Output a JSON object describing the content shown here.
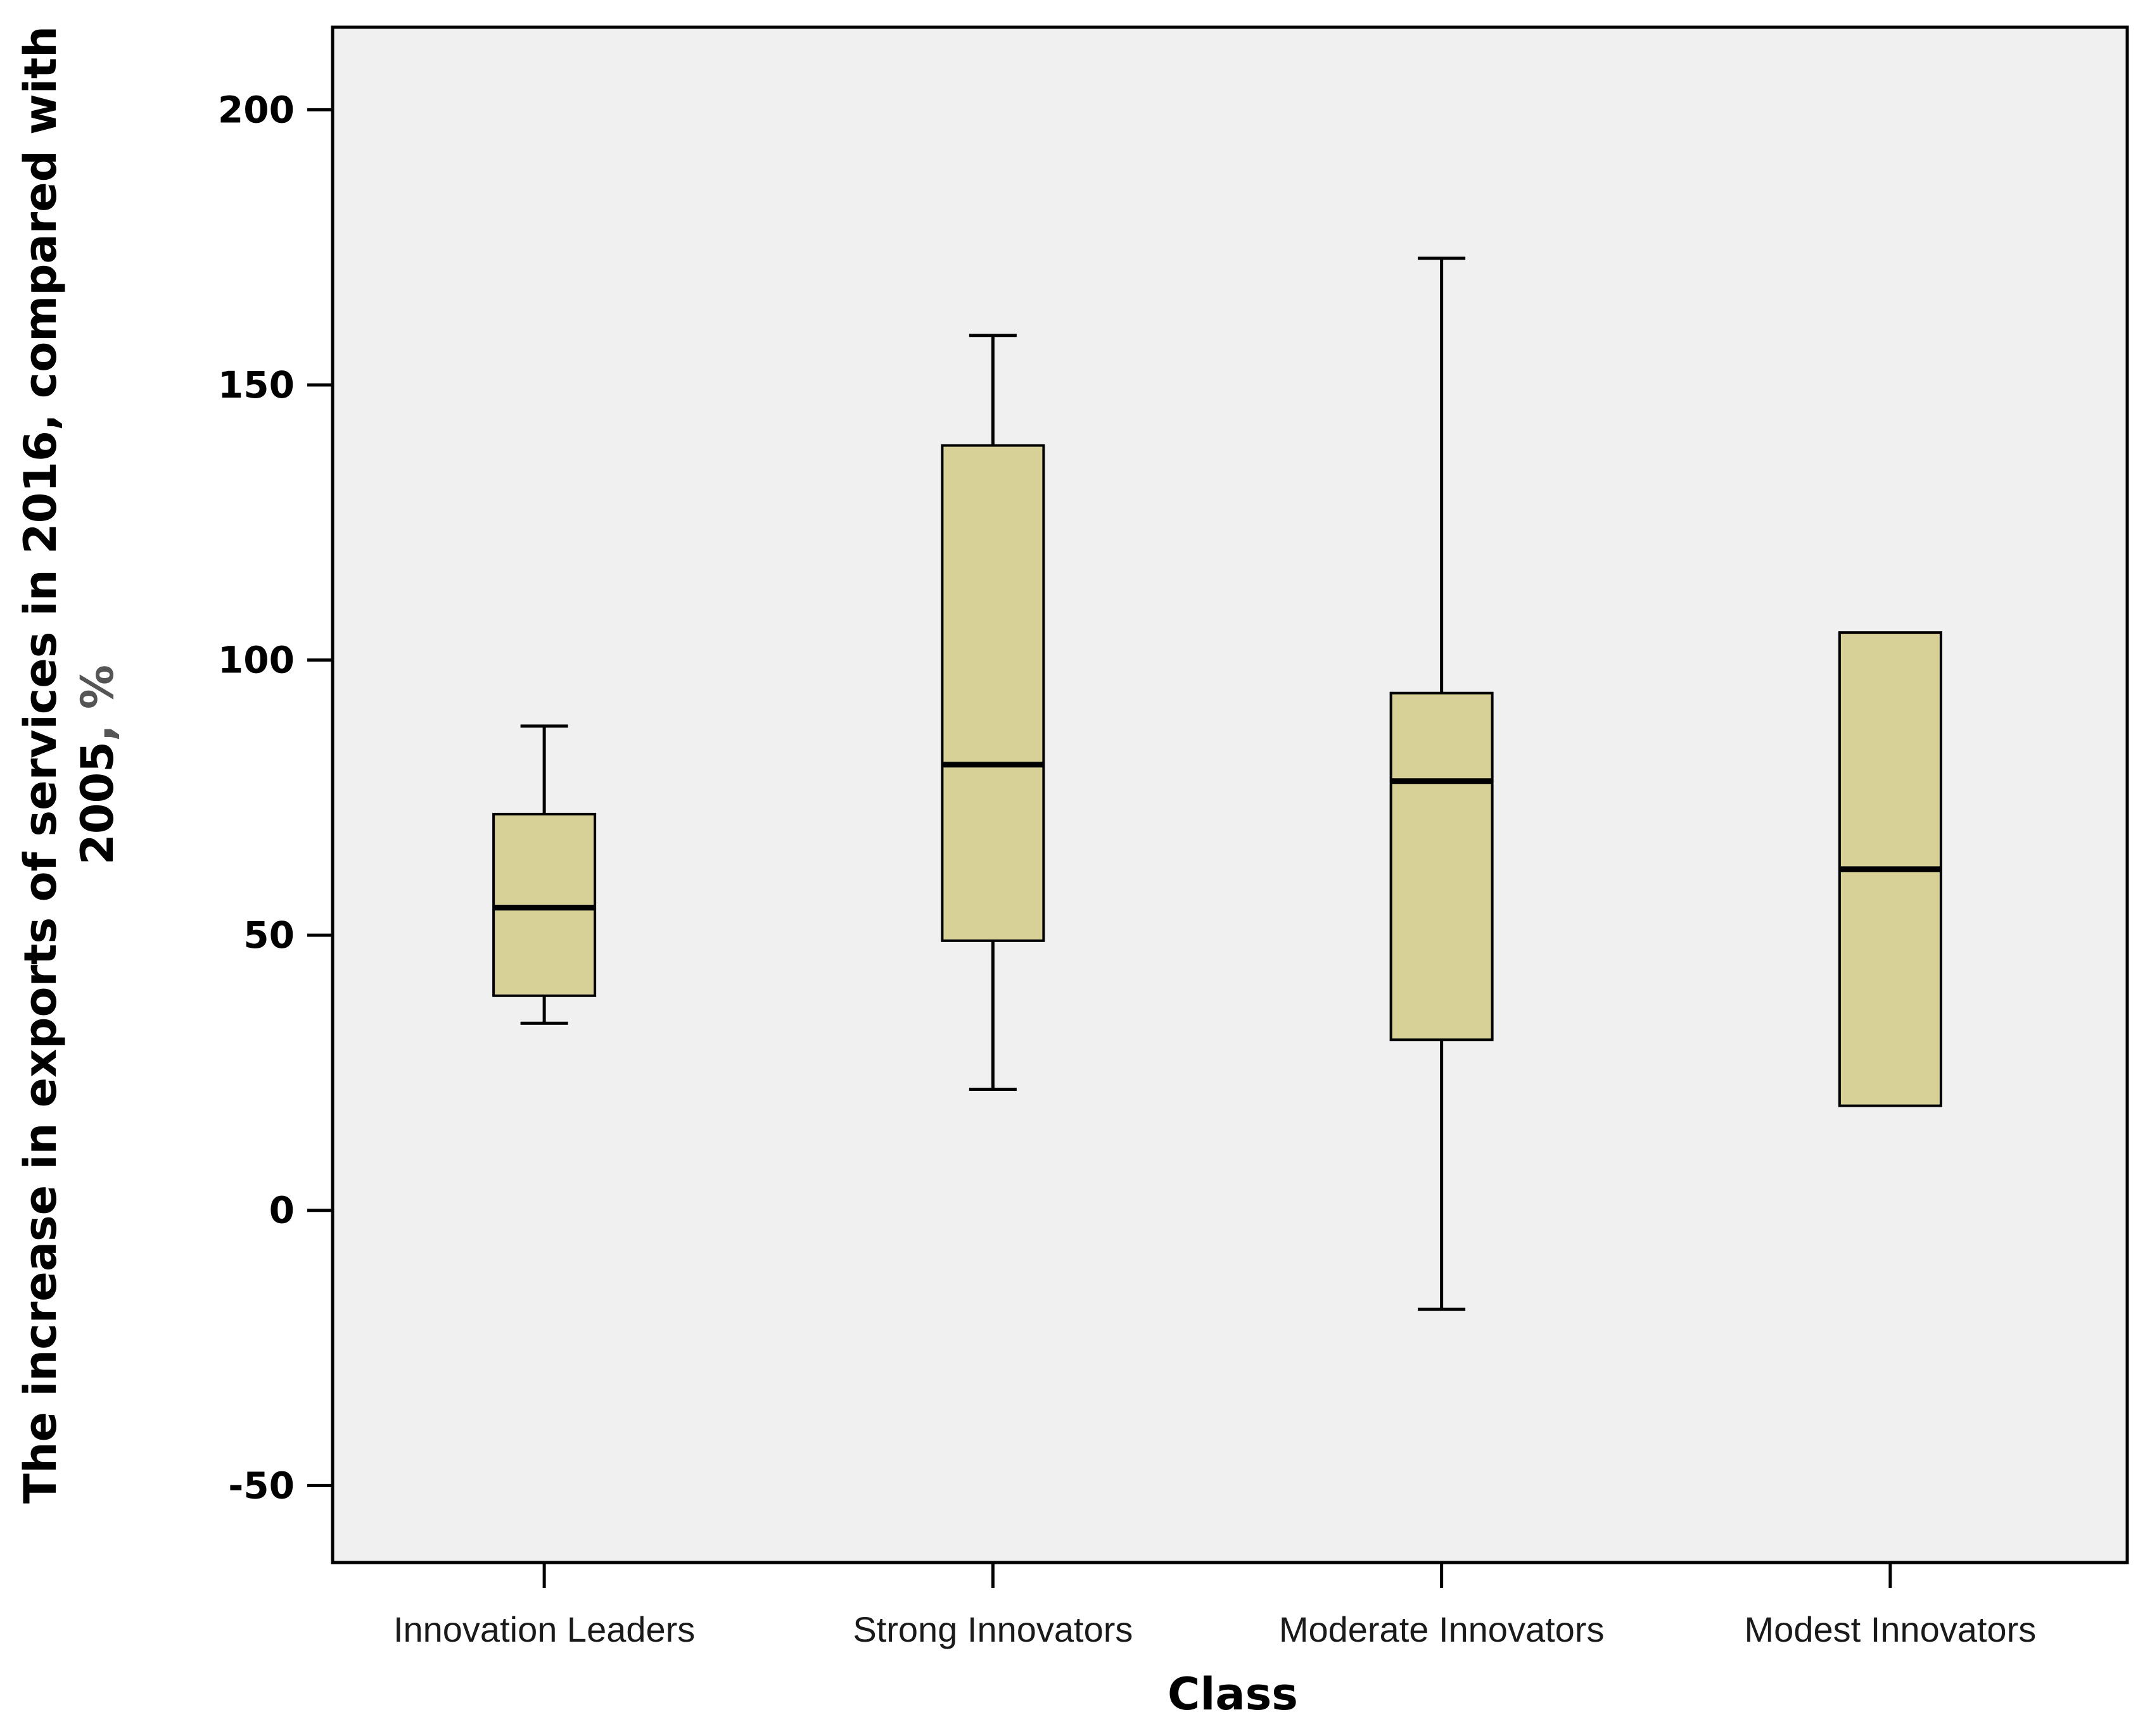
{
  "chart_data": {
    "type": "boxplot",
    "title": "",
    "xlabel": "Class",
    "ylabel": {
      "line1": "The increase in exports of services in 2016, compared with",
      "line2": "2005",
      "unit": ", %"
    },
    "ylim": [
      -64,
      215
    ],
    "yticks": [
      -50,
      0,
      50,
      100,
      150,
      200
    ],
    "grid": false,
    "colors": {
      "plot_background": "#f0f0f0",
      "box_fill": "#d7d097",
      "stroke": "#000000"
    },
    "categories": [
      "Innovation Leaders",
      "Strong Innovators",
      "Moderate Innovators",
      "Modest Innovators"
    ],
    "boxes": [
      {
        "category": "Innovation Leaders",
        "whisker_low": 34,
        "q1": 39,
        "median": 55,
        "q3": 72,
        "whisker_high": 88
      },
      {
        "category": "Strong Innovators",
        "whisker_low": 22,
        "q1": 49,
        "median": 81,
        "q3": 139,
        "whisker_high": 159
      },
      {
        "category": "Moderate Innovators",
        "whisker_low": -18,
        "q1": 31,
        "median": 78,
        "q3": 94,
        "whisker_high": 173
      },
      {
        "category": "Modest Innovators",
        "whisker_low": 19,
        "q1": 19,
        "median": 62,
        "q3": 105,
        "whisker_high": 105
      }
    ]
  }
}
